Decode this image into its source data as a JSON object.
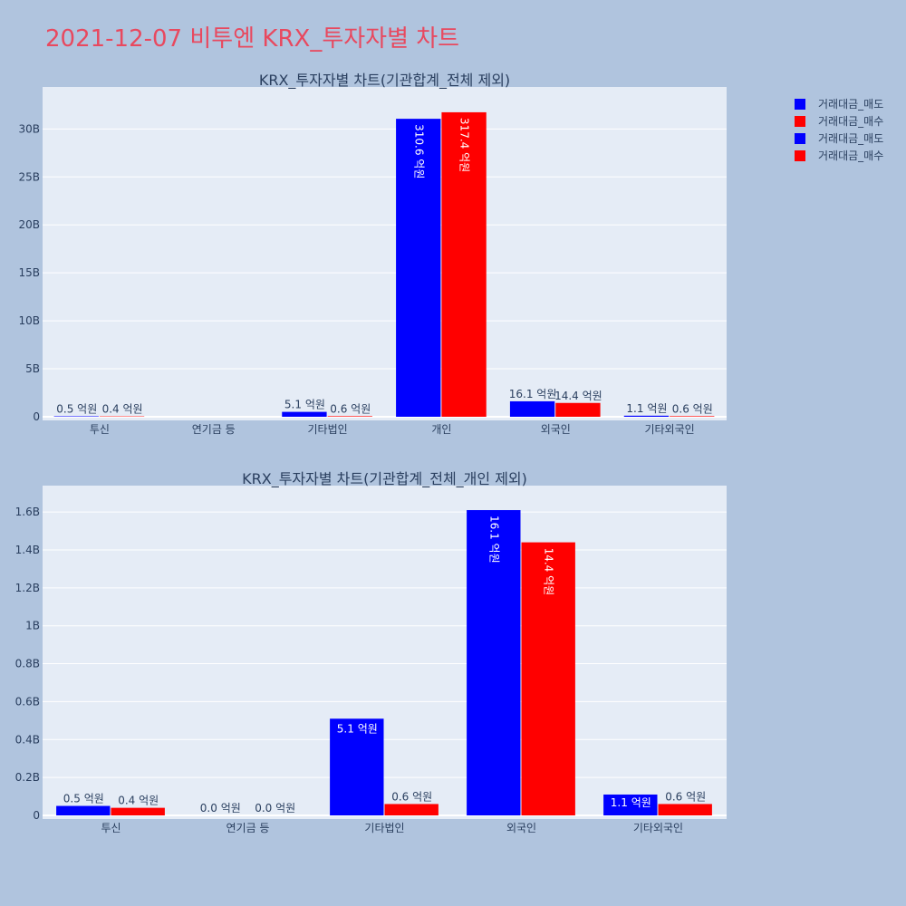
{
  "page_title": "2021-12-07 비투엔 KRX_투자자별 차트",
  "colors": {
    "sell": "#0000ff",
    "buy": "#ff0000",
    "plot_bg": "#e5ecf6",
    "page_bg": "#b0c4de"
  },
  "legend": [
    "거래대금_매도",
    "거래대금_매수",
    "거래대금_매도",
    "거래대금_매수"
  ],
  "chart_data": [
    {
      "type": "bar",
      "title": "KRX_투자자별 차트(기관합계_전체 제외)",
      "categories": [
        "투신",
        "연기금 등",
        "기타법인",
        "개인",
        "외국인",
        "기타외국인"
      ],
      "series": [
        {
          "name": "거래대금_매도",
          "values": [
            50000000,
            0,
            510000000,
            31060000000,
            1610000000,
            110000000
          ],
          "labels": [
            "0.5 억원",
            "",
            "5.1 억원",
            "310.6 억원",
            "16.1 억원",
            "1.1 억원"
          ]
        },
        {
          "name": "거래대금_매수",
          "values": [
            40000000,
            0,
            60000000,
            31740000000,
            1440000000,
            60000000
          ],
          "labels": [
            "0.4 억원",
            "",
            "0.6 억원",
            "317.4 억원",
            "14.4 억원",
            "0.6 억원"
          ]
        }
      ],
      "ylim": [
        0,
        34000000000
      ],
      "yticks": [
        0,
        5000000000,
        10000000000,
        15000000000,
        20000000000,
        25000000000,
        30000000000
      ],
      "ytick_labels": [
        "0",
        "5B",
        "10B",
        "15B",
        "20B",
        "25B",
        "30B"
      ],
      "grid": true
    },
    {
      "type": "bar",
      "title": "KRX_투자자별 차트(기관합계_전체_개인 제외)",
      "categories": [
        "투신",
        "연기금 등",
        "기타법인",
        "외국인",
        "기타외국인"
      ],
      "series": [
        {
          "name": "거래대금_매도",
          "values": [
            50000000,
            0,
            510000000,
            1610000000,
            110000000
          ],
          "labels": [
            "0.5 억원",
            "0.0 억원",
            "5.1 억원",
            "16.1 억원",
            "1.1 억원"
          ]
        },
        {
          "name": "거래대금_매수",
          "values": [
            40000000,
            0,
            60000000,
            1440000000,
            60000000
          ],
          "labels": [
            "0.4 억원",
            "0.0 억원",
            "0.6 억원",
            "14.4 억원",
            "0.6 억원"
          ]
        }
      ],
      "ylim": [
        0,
        1720000000
      ],
      "yticks": [
        0,
        200000000,
        400000000,
        600000000,
        800000000,
        1000000000,
        1200000000,
        1400000000,
        1600000000
      ],
      "ytick_labels": [
        "0",
        "0.2B",
        "0.4B",
        "0.6B",
        "0.8B",
        "1B",
        "1.2B",
        "1.4B",
        "1.6B"
      ],
      "grid": true
    }
  ]
}
